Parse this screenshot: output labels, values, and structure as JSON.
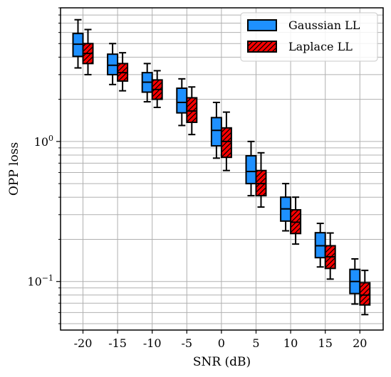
{
  "chart_data": {
    "type": "box",
    "xlabel": "SNR (dB)",
    "ylabel": "OPP loss",
    "categories": [
      "-20",
      "-15",
      "-10",
      "-5",
      "0",
      "5",
      "10",
      "15",
      "20"
    ],
    "y_scale": "log",
    "ylim": [
      0.045,
      9.0
    ],
    "y_ticks": [
      {
        "value": 1.0,
        "label_base": "10",
        "label_exp": "0"
      },
      {
        "value": 0.1,
        "label_base": "10",
        "label_exp": "−1"
      }
    ],
    "grid": true,
    "legend_position": "top-right",
    "series": [
      {
        "name": "Gaussian LL",
        "color": "#1e90ff",
        "hatch": false,
        "boxes": [
          {
            "whisker_low": 3.35,
            "q1": 4.05,
            "median": 4.95,
            "q3": 5.9,
            "whisker_high": 7.4
          },
          {
            "whisker_low": 2.55,
            "q1": 3.0,
            "median": 3.5,
            "q3": 4.2,
            "whisker_high": 5.0
          },
          {
            "whisker_low": 1.92,
            "q1": 2.25,
            "median": 2.65,
            "q3": 3.1,
            "whisker_high": 3.6
          },
          {
            "whisker_low": 1.3,
            "q1": 1.6,
            "median": 1.9,
            "q3": 2.4,
            "whisker_high": 2.8
          },
          {
            "whisker_low": 0.76,
            "q1": 0.93,
            "median": 1.2,
            "q3": 1.48,
            "whisker_high": 1.9
          },
          {
            "whisker_low": 0.41,
            "q1": 0.5,
            "median": 0.61,
            "q3": 0.79,
            "whisker_high": 1.0
          },
          {
            "whisker_low": 0.23,
            "q1": 0.27,
            "median": 0.33,
            "q3": 0.4,
            "whisker_high": 0.5
          },
          {
            "whisker_low": 0.127,
            "q1": 0.148,
            "median": 0.18,
            "q3": 0.223,
            "whisker_high": 0.26
          },
          {
            "whisker_low": 0.069,
            "q1": 0.082,
            "median": 0.1,
            "q3": 0.122,
            "whisker_high": 0.145
          }
        ]
      },
      {
        "name": "Laplace LL",
        "color": "#ff0000",
        "hatch": true,
        "boxes": [
          {
            "whisker_low": 3.0,
            "q1": 3.6,
            "median": 4.25,
            "q3": 5.0,
            "whisker_high": 6.3
          },
          {
            "whisker_low": 2.3,
            "q1": 2.7,
            "median": 3.1,
            "q3": 3.6,
            "whisker_high": 4.3
          },
          {
            "whisker_low": 1.75,
            "q1": 2.0,
            "median": 2.35,
            "q3": 2.75,
            "whisker_high": 3.2
          },
          {
            "whisker_low": 1.12,
            "q1": 1.37,
            "median": 1.65,
            "q3": 2.05,
            "whisker_high": 2.45
          },
          {
            "whisker_low": 0.62,
            "q1": 0.77,
            "median": 1.0,
            "q3": 1.25,
            "whisker_high": 1.62
          },
          {
            "whisker_low": 0.34,
            "q1": 0.41,
            "median": 0.5,
            "q3": 0.62,
            "whisker_high": 0.83
          },
          {
            "whisker_low": 0.185,
            "q1": 0.22,
            "median": 0.265,
            "q3": 0.325,
            "whisker_high": 0.4
          },
          {
            "whisker_low": 0.104,
            "q1": 0.124,
            "median": 0.15,
            "q3": 0.18,
            "whisker_high": 0.222
          },
          {
            "whisker_low": 0.058,
            "q1": 0.068,
            "median": 0.08,
            "q3": 0.098,
            "whisker_high": 0.12
          }
        ]
      }
    ]
  }
}
